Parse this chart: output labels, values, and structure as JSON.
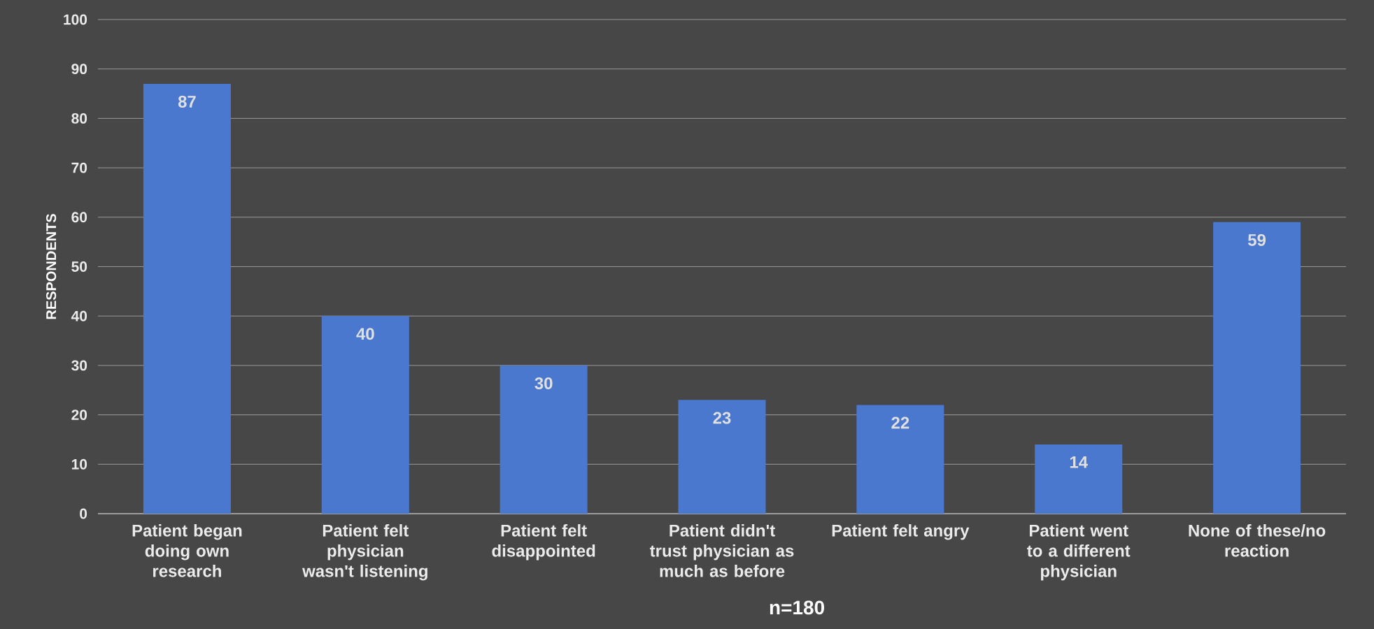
{
  "chart_data": {
    "type": "bar",
    "ylabel": "RESPONDENTS",
    "categories": [
      "Patient began doing own research",
      "Patient felt physician wasn't listening",
      "Patient felt disappointed",
      "Patient didn't trust physician as much as before",
      "Patient felt angry",
      "Patient went to a different physician",
      "None of these/no reaction"
    ],
    "values": [
      87,
      40,
      30,
      23,
      22,
      14,
      59
    ],
    "color": "#4a78cf",
    "ylim": [
      0,
      100
    ],
    "yticks": [
      0,
      10,
      20,
      30,
      40,
      50,
      60,
      70,
      80,
      90,
      100
    ],
    "grid": "y",
    "data_labels": true,
    "annotations": [
      "n=180"
    ]
  }
}
